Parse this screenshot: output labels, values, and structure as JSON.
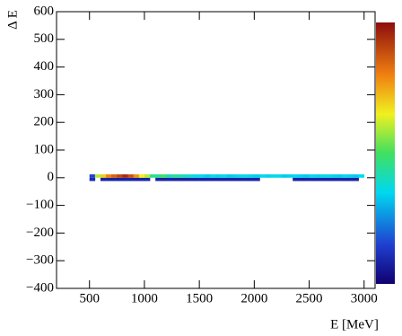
{
  "chart_data": {
    "type": "heatmap",
    "x_title": "E [MeV]",
    "y_title": "Δ E",
    "xlim": [
      200,
      3100
    ],
    "ylim": [
      -400,
      600
    ],
    "xticks": [
      500,
      1000,
      1500,
      2000,
      2500,
      3000
    ],
    "yticks": [
      {
        "value": -400,
        "label": "−400"
      },
      {
        "value": -300,
        "label": "−300"
      },
      {
        "value": -200,
        "label": "−200"
      },
      {
        "value": -100,
        "label": "−100"
      },
      0,
      100,
      200,
      300,
      400,
      500,
      600
    ],
    "x_bins": [
      500,
      550,
      600,
      650,
      700,
      750,
      800,
      850,
      900,
      950,
      1000,
      1050,
      1100,
      1150,
      1200,
      1250,
      1300,
      1350,
      1400,
      1450,
      1500,
      1550,
      1600,
      1650,
      1700,
      1750,
      1800,
      1850,
      1900,
      1950,
      2000,
      2050,
      2100,
      2150,
      2200,
      2250,
      2300,
      2350,
      2400,
      2450,
      2500,
      2550,
      2600,
      2650,
      2700,
      2750,
      2800,
      2850,
      2900,
      2950,
      3000
    ],
    "y_bins": [
      -12,
      0,
      12
    ],
    "zlim": [
      0,
      100
    ],
    "z": [
      [
        10,
        null,
        8,
        8,
        8,
        8,
        8,
        8,
        8,
        8,
        8,
        null,
        8,
        8,
        8,
        8,
        8,
        8,
        8,
        8,
        8,
        8,
        8,
        8,
        8,
        8,
        8,
        8,
        8,
        8,
        8,
        null,
        null,
        null,
        null,
        null,
        null,
        8,
        8,
        8,
        8,
        8,
        8,
        8,
        8,
        8,
        8,
        8,
        8,
        null
      ],
      [
        15,
        60,
        70,
        80,
        85,
        90,
        95,
        88,
        78,
        65,
        60,
        45,
        45,
        50,
        40,
        45,
        42,
        40,
        38,
        35,
        35,
        33,
        36,
        34,
        35,
        33,
        34,
        36,
        35,
        34,
        33,
        35,
        34,
        36,
        35,
        33,
        34,
        35,
        34,
        33,
        35,
        34,
        36,
        35,
        34,
        33,
        35,
        34,
        33,
        35
      ]
    ]
  }
}
